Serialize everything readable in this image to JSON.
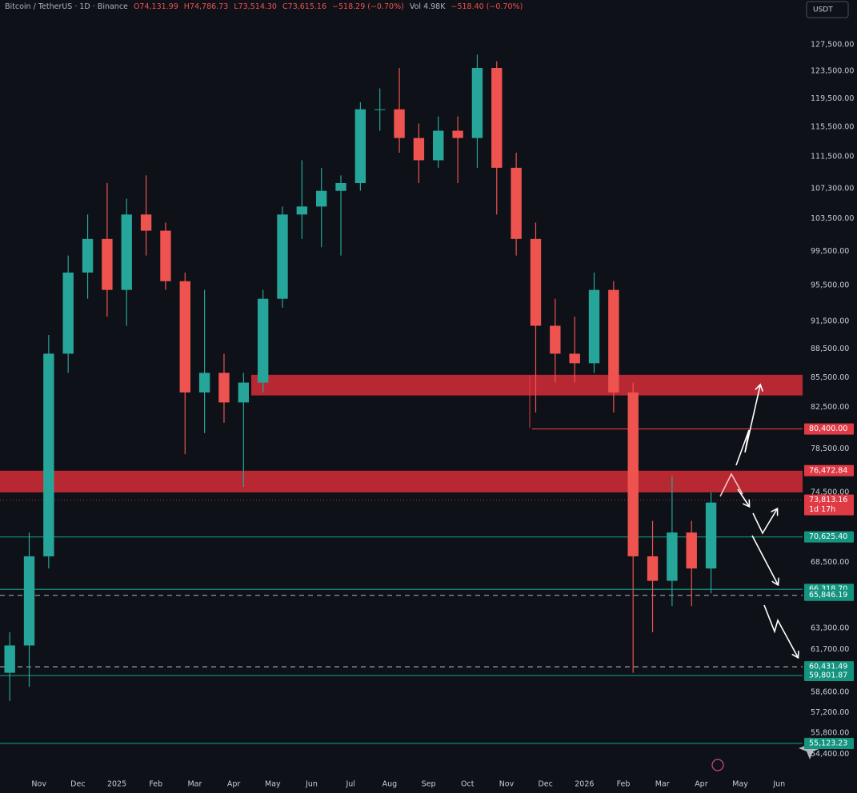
{
  "header": {
    "symbol": "Bitcoin / TetherUS · 1D · Binance",
    "open": "O74,131.99",
    "high": "H74,786.73",
    "low": "L73,514.30",
    "close": "C73,615.16",
    "change": "−518.29 (−0.70%)",
    "volume": "Vol 4.98K",
    "volume_change": "−518.40 (−0.70%)"
  },
  "currency_button": "USDT",
  "chart_data": {
    "type": "candlestick",
    "x": [
      -0.75,
      -0.25,
      0.25,
      0.75,
      1.25,
      1.75,
      2.25,
      2.75,
      3.25,
      3.75,
      4.25,
      4.75,
      5.25,
      5.75,
      6.25,
      6.75,
      7.25,
      7.75,
      8.25,
      8.75,
      9.25,
      9.75,
      10.25,
      10.75,
      11.25,
      11.75,
      12.25,
      12.75,
      13.25,
      13.75,
      14.25,
      14.75,
      15.25,
      15.75,
      16.25,
      16.75,
      17.25
    ],
    "open": [
      60000,
      62000,
      69000,
      88000,
      97000,
      101000,
      95000,
      104000,
      102000,
      96000,
      84000,
      86000,
      83000,
      85000,
      94000,
      104000,
      105000,
      107000,
      108000,
      118000,
      118000,
      114000,
      111000,
      115000,
      114000,
      124000,
      110000,
      101000,
      91000,
      88000,
      87000,
      95000,
      84000,
      69000,
      67000,
      71000,
      68000
    ],
    "high": [
      63000,
      71000,
      90000,
      99000,
      104000,
      108000,
      106000,
      109000,
      103000,
      97000,
      95000,
      88000,
      86000,
      95000,
      105000,
      111000,
      110000,
      109000,
      119000,
      121000,
      124000,
      116000,
      117000,
      117000,
      126000,
      125000,
      112000,
      103000,
      94000,
      92000,
      97000,
      96000,
      85000,
      72000,
      76000,
      72000,
      74500
    ],
    "low": [
      58000,
      59000,
      68000,
      86000,
      94000,
      92000,
      91000,
      99000,
      95000,
      78000,
      80000,
      81000,
      75000,
      84000,
      93000,
      101000,
      100000,
      99000,
      107000,
      115000,
      112000,
      108000,
      110000,
      108000,
      110000,
      104000,
      99000,
      82000,
      85000,
      85000,
      86000,
      82000,
      60000,
      63000,
      65000,
      65000,
      66000
    ],
    "close": [
      62000,
      69000,
      88000,
      97000,
      101000,
      95000,
      104000,
      102000,
      96000,
      84000,
      86000,
      83000,
      85000,
      94000,
      104000,
      105000,
      107000,
      108000,
      118000,
      118000,
      114000,
      111000,
      115000,
      114000,
      124000,
      110000,
      101000,
      91000,
      88000,
      87000,
      95000,
      84000,
      69000,
      67000,
      71000,
      68000,
      73600
    ],
    "up_color": "#26a69a",
    "down_color": "#ef5350",
    "xlim": [
      -1,
      19.6
    ],
    "xticks": [
      {
        "value": 0,
        "label": "Nov"
      },
      {
        "value": 1,
        "label": "Dec"
      },
      {
        "value": 2,
        "label": "2025"
      },
      {
        "value": 3,
        "label": "Feb"
      },
      {
        "value": 4,
        "label": "Mar"
      },
      {
        "value": 5,
        "label": "Apr"
      },
      {
        "value": 6,
        "label": "May"
      },
      {
        "value": 7,
        "label": "Jun"
      },
      {
        "value": 8,
        "label": "Jul"
      },
      {
        "value": 9,
        "label": "Aug"
      },
      {
        "value": 10,
        "label": "Sep"
      },
      {
        "value": 11,
        "label": "Oct"
      },
      {
        "value": 12,
        "label": "Nov"
      },
      {
        "value": 13,
        "label": "Dec"
      },
      {
        "value": 14,
        "label": "2026"
      },
      {
        "value": 15,
        "label": "Feb"
      },
      {
        "value": 16,
        "label": "Mar"
      },
      {
        "value": 17,
        "label": "Apr"
      },
      {
        "value": 18,
        "label": "May"
      },
      {
        "value": 19,
        "label": "Jun"
      }
    ],
    "ylim": [
      53300,
      134540
    ],
    "log_y": true,
    "yticks": [
      {
        "value": 127500,
        "label": "127,500.00"
      },
      {
        "value": 123500,
        "label": "123,500.00"
      },
      {
        "value": 119500,
        "label": "119,500.00"
      },
      {
        "value": 115500,
        "label": "115,500.00"
      },
      {
        "value": 111500,
        "label": "111,500.00"
      },
      {
        "value": 107300,
        "label": "107,300.00"
      },
      {
        "value": 103500,
        "label": "103,500.00"
      },
      {
        "value": 99500,
        "label": "99,500.00"
      },
      {
        "value": 95500,
        "label": "95,500.00"
      },
      {
        "value": 91500,
        "label": "91,500.00"
      },
      {
        "value": 88500,
        "label": "88,500.00"
      },
      {
        "value": 85500,
        "label": "85,500.00"
      },
      {
        "value": 82500,
        "label": "82,500.00"
      },
      {
        "value": 78500,
        "label": "78,500.00"
      },
      {
        "value": 74500,
        "label": "74,500.00"
      },
      {
        "value": 68500,
        "label": "68,500.00"
      },
      {
        "value": 63300,
        "label": "63,300.00"
      },
      {
        "value": 61700,
        "label": "61,700.00"
      },
      {
        "value": 58600,
        "label": "58,600.00"
      },
      {
        "value": 57200,
        "label": "57,200.00"
      },
      {
        "value": 55800,
        "label": "55,800.00"
      },
      {
        "value": 54400,
        "label": "54,400.00"
      }
    ],
    "zones": [
      {
        "from": 83700,
        "to": 85800,
        "x_from": 5.45,
        "color": "#c62a35"
      },
      {
        "from": 74500,
        "to": 76470,
        "color": "#c62a35"
      }
    ],
    "levels": [
      {
        "value": 80400,
        "label": "80,400.00",
        "color": "#e03a45",
        "line": "solid",
        "x_from": 12.65
      },
      {
        "value": 76472.84,
        "label": "76,472.84",
        "color": "#e03a45",
        "line": "none"
      },
      {
        "value": 73813.16,
        "label": "73,813.16",
        "color": "#e03a45",
        "line": "dotted",
        "countdown": "1d 17h"
      },
      {
        "value": 70625.4,
        "label": "70,625.40",
        "color": "#14937f",
        "line": "solid"
      },
      {
        "value": 66318.7,
        "label": "66,318.70",
        "color": "#14937f",
        "line": "solid"
      },
      {
        "value": 65846.19,
        "label": "65,846.19",
        "color": "#14937f",
        "line": "dashed"
      },
      {
        "value": 60431.49,
        "label": "60,431.49",
        "color": "#14937f",
        "line": "dashed"
      },
      {
        "value": 59801.87,
        "label": "59,801.87",
        "color": "#14937f",
        "line": "solid"
      },
      {
        "value": 55123.23,
        "label": "55,123.23",
        "color": "#14937f",
        "line": "solid"
      }
    ]
  }
}
